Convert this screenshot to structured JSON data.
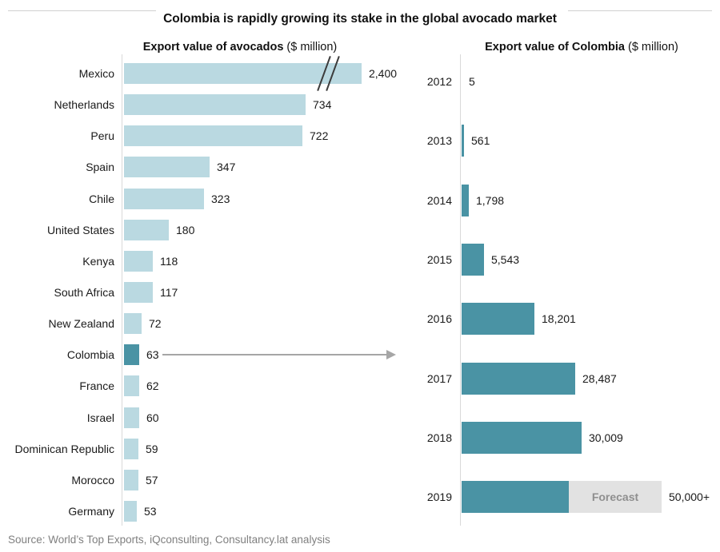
{
  "page_title": "Colombia is rapidly growing its stake in the global avocado market",
  "source_note": "Source: World’s Top Exports, iQconsulting, Consultancy.lat analysis",
  "colors": {
    "bar_light": "#bad9e1",
    "bar_teal": "#4a93a4",
    "forecast_gray": "#e2e2e2",
    "forecast_text": "#8f8f8f",
    "axis_line": "#d9d9d9",
    "title_rule": "#d0d0d0",
    "arrow": "#a6a6a6",
    "break_mark": "#3d3d3d",
    "source_text": "#808080"
  },
  "chart_data": [
    {
      "type": "bar",
      "orientation": "horizontal",
      "title": "Export value of avocados",
      "unit_suffix": " ($ million)",
      "categories": [
        "Mexico",
        "Netherlands",
        "Peru",
        "Spain",
        "Chile",
        "United States",
        "Kenya",
        "South Africa",
        "New Zealand",
        "Colombia",
        "France",
        "Israel",
        "Dominican Republic",
        "Morocco",
        "Germany"
      ],
      "values": [
        2400,
        734,
        722,
        347,
        323,
        180,
        118,
        117,
        72,
        63,
        62,
        60,
        59,
        57,
        53
      ],
      "value_labels": [
        "2,400",
        "734",
        "722",
        "347",
        "323",
        "180",
        "118",
        "117",
        "72",
        "63",
        "62",
        "60",
        "59",
        "57",
        "53"
      ],
      "highlighted_category": "Colombia",
      "axis_break_category": "Mexico",
      "legend": "none",
      "grid": "off",
      "note": "Mexico bar truncated with // axis-break marks; Colombia bar highlighted in dark teal with gray arrow pointing to right-hand chart"
    },
    {
      "type": "bar",
      "orientation": "horizontal",
      "title": "Export value of Colombia",
      "unit_suffix": " ($ million)",
      "categories": [
        "2012",
        "2013",
        "2014",
        "2015",
        "2016",
        "2017",
        "2018",
        "2019"
      ],
      "values": [
        5,
        561,
        1798,
        5543,
        18201,
        28487,
        30009,
        50000
      ],
      "value_labels": [
        "5",
        "561",
        "1,798",
        "5,543",
        "18,201",
        "28,487",
        "30,009",
        "50,000+"
      ],
      "forecast_category": "2019",
      "forecast_label": "Forecast",
      "forecast_actual_value": 26800,
      "legend": "none",
      "grid": "off",
      "note": "2019 bar is part actual (teal) and part gray forecast segment labelled Forecast, total 50,000+"
    }
  ]
}
